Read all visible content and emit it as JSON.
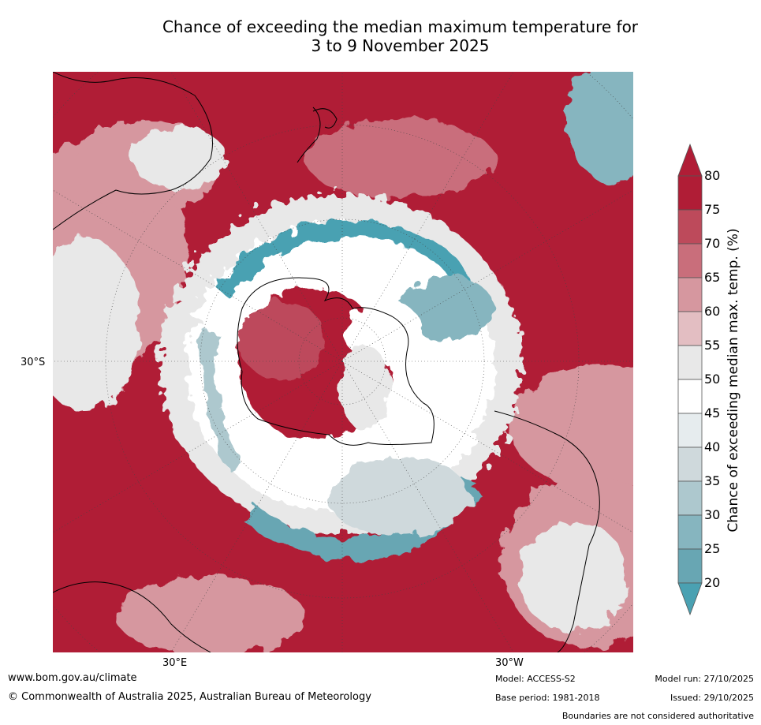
{
  "title_line1": "Chance of exceeding the median maximum temperature for",
  "title_line2": "3 to 9 November 2025",
  "map": {
    "projection": "south-polar",
    "lat_label": "30°S",
    "lon_label_east": "30°E",
    "lon_label_west": "30°W"
  },
  "colorbar": {
    "label": "Chance of exceeding median max. temp. (%)",
    "ticks": [
      "80",
      "75",
      "70",
      "65",
      "60",
      "55",
      "50",
      "45",
      "40",
      "35",
      "30",
      "25",
      "20"
    ],
    "colors": [
      "#b01d36",
      "#bd4a5b",
      "#c96e7b",
      "#d6979f",
      "#e3bec2",
      "#e8e8e8",
      "#ffffff",
      "#e6ecee",
      "#cfd9dc",
      "#adc8ce",
      "#86b5bf",
      "#68a6b3"
    ],
    "extend_high": "#b01d36",
    "extend_low": "#4aa1b2"
  },
  "footer": {
    "website": "www.bom.gov.au/climate",
    "copyright": "© Commonwealth of Australia 2025, Australian Bureau of Meteorology",
    "model": "Model: ACCESS-S2",
    "base_period": "Base period: 1981-2018",
    "model_run": "Model run: 27/10/2025",
    "issued": "Issued: 29/10/2025",
    "disclaimer": "Boundaries are not considered authoritative"
  }
}
